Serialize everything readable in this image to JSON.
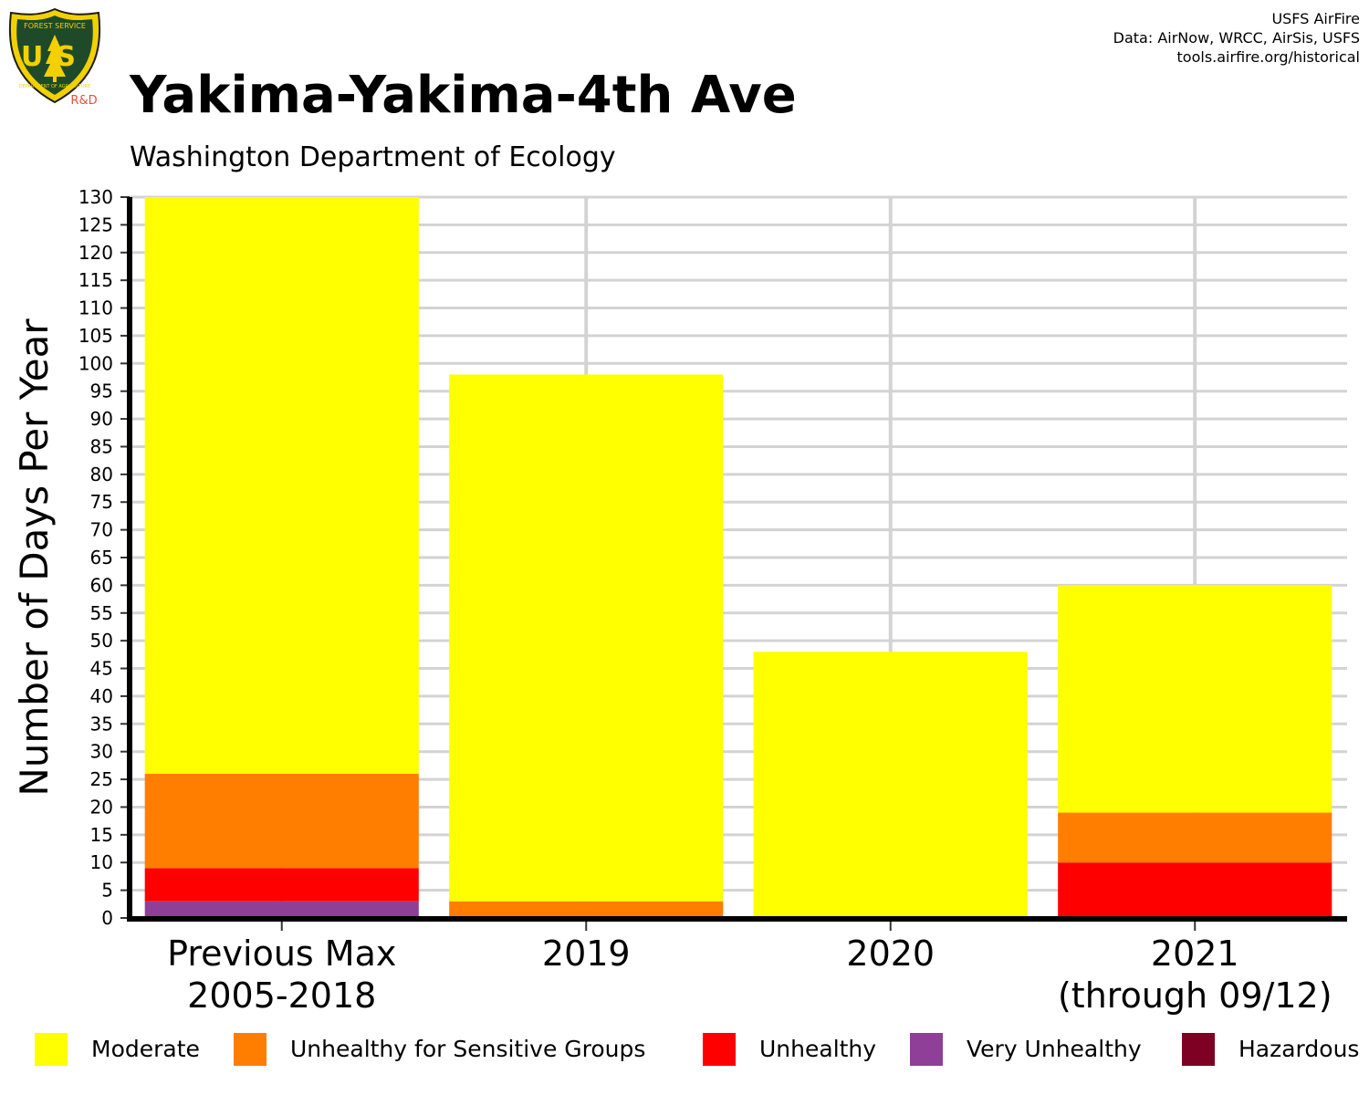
{
  "header": {
    "title": "Yakima-Yakima-4th Ave",
    "subtitle": "Washington Department of Ecology",
    "credits": [
      "USFS AirFire",
      "Data: AirNow, WRCC, AirSis, USFS",
      "tools.airfire.org/historical"
    ]
  },
  "logo": {
    "top_text": "FOREST SERVICE",
    "shield_text": "US",
    "bottom_text": "DEPARTMENT OF AGRICULTURE",
    "tag": "R&D"
  },
  "chart_data": {
    "type": "bar",
    "stacked": true,
    "title": "Yakima-Yakima-4th Ave",
    "subtitle": "Washington Department of Ecology",
    "xlabel": "",
    "ylabel": "Number of Days Per Year",
    "ylim": [
      0,
      130
    ],
    "ytick_step": 5,
    "grid": true,
    "categories": [
      [
        "Previous Max",
        "2005-2018"
      ],
      [
        "2019"
      ],
      [
        "2020"
      ],
      [
        "2021",
        "(through 09/12)"
      ]
    ],
    "series": [
      {
        "name": "Very Unhealthy",
        "color": "#8f3f97",
        "values": [
          3,
          0,
          0,
          0
        ]
      },
      {
        "name": "Unhealthy",
        "color": "#ff0000",
        "values": [
          6,
          0,
          0,
          10
        ]
      },
      {
        "name": "Unhealthy for Sensitive Groups",
        "color": "#ff7e00",
        "values": [
          17,
          3,
          0,
          9
        ]
      },
      {
        "name": "Moderate",
        "color": "#ffff00",
        "values": [
          104,
          95,
          48,
          41
        ]
      },
      {
        "name": "Hazardous",
        "color": "#7e0023",
        "values": [
          0,
          0,
          0,
          0
        ]
      }
    ],
    "legend": [
      {
        "label": "Moderate",
        "color": "#ffff00"
      },
      {
        "label": "Unhealthy for Sensitive Groups",
        "color": "#ff7e00"
      },
      {
        "label": "Unhealthy",
        "color": "#ff0000"
      },
      {
        "label": "Very Unhealthy",
        "color": "#8f3f97"
      },
      {
        "label": "Hazardous",
        "color": "#7e0023"
      }
    ],
    "legend_position": "bottom"
  }
}
